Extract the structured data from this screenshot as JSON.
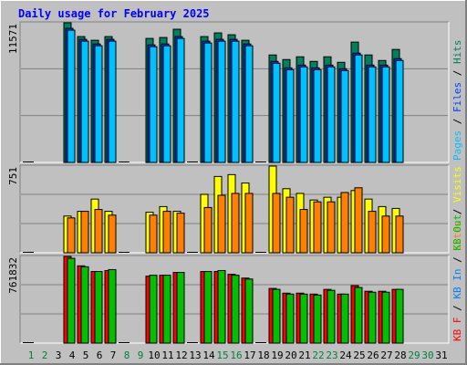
{
  "title": "Daily usage for February 2025",
  "separator": " / ",
  "categories": [
    "1",
    "2",
    "3",
    "4",
    "5",
    "6",
    "7",
    "8",
    "9",
    "10",
    "11",
    "12",
    "13",
    "14",
    "15",
    "16",
    "17",
    "18",
    "19",
    "20",
    "21",
    "22",
    "23",
    "24",
    "25",
    "26",
    "27",
    "28",
    "29",
    "30",
    "31"
  ],
  "category_colors": [
    "#008040",
    "#008040",
    "#000000",
    "#000000",
    "#000000",
    "#000000",
    "#000000",
    "#008040",
    "#008040",
    "#000000",
    "#000000",
    "#000000",
    "#000000",
    "#000000",
    "#008040",
    "#008040",
    "#000000",
    "#000000",
    "#000000",
    "#000000",
    "#000000",
    "#008040",
    "#008040",
    "#000000",
    "#000000",
    "#000000",
    "#000000",
    "#000000",
    "#008040",
    "#008040",
    "#000000"
  ],
  "chart_data": [
    {
      "type": "bar",
      "ylim": [
        0,
        11571
      ],
      "yticks": [
        11571
      ],
      "legend_reverse": true,
      "series": [
        {
          "name": "Hits",
          "color": "#00805c",
          "values": [
            0,
            null,
            null,
            11571,
            10430,
            10125,
            10430,
            0,
            null,
            10277,
            10354,
            11039,
            0,
            10430,
            10734,
            10582,
            10125,
            0,
            8907,
            8526,
            8755,
            8374,
            8755,
            8298,
            9973,
            8907,
            8450,
            9364,
            null,
            null,
            null
          ]
        },
        {
          "name": "Files",
          "color": "#0040ff",
          "values": [
            0,
            null,
            null,
            11113,
            10199,
            9818,
            10199,
            0,
            null,
            9742,
            9818,
            10427,
            0,
            10047,
            10199,
            10199,
            9818,
            0,
            8372,
            7839,
            8067,
            7839,
            8067,
            7763,
            9057,
            8067,
            8067,
            8600,
            null,
            null,
            null
          ]
        },
        {
          "name": "Pages",
          "color": "#00c0ff",
          "values": [
            0,
            null,
            null,
            10963,
            10049,
            9668,
            10049,
            0,
            null,
            9592,
            9668,
            10277,
            0,
            9897,
            10049,
            10049,
            9668,
            0,
            8222,
            7689,
            7917,
            7689,
            7917,
            7613,
            8907,
            7917,
            7917,
            8450,
            null,
            null,
            null
          ]
        }
      ]
    },
    {
      "type": "bar",
      "ylim": [
        0,
        751
      ],
      "yticks": [
        751
      ],
      "legend_reverse": true,
      "series": [
        {
          "name": "Visits",
          "color": "#ffff00",
          "values": [
            0,
            null,
            null,
            318,
            359,
            465,
            359,
            0,
            null,
            351,
            400,
            359,
            0,
            506,
            661,
            677,
            604,
            0,
            751,
            555,
            514,
            457,
            481,
            481,
            539,
            465,
            400,
            384,
            null,
            null,
            null
          ]
        },
        {
          "name": "Sites",
          "color": "#ff8000",
          "values": [
            0,
            null,
            null,
            302,
            359,
            375,
            326,
            0,
            null,
            326,
            359,
            343,
            0,
            392,
            498,
            514,
            514,
            0,
            514,
            481,
            375,
            441,
            441,
            522,
            563,
            359,
            318,
            318,
            null,
            null,
            null
          ]
        }
      ]
    },
    {
      "type": "bar",
      "ylim": [
        0,
        761832
      ],
      "yticks": [
        761832
      ],
      "legend_reverse": false,
      "series": [
        {
          "name": "KB F",
          "color": "#ff0000",
          "values": [
            0,
            null,
            null,
            761832,
            679042,
            629356,
            637637,
            0,
            null,
            587951,
            596232,
            621075,
            0,
            629356,
            629356,
            604513,
            571389,
            0,
            480298,
            438893,
            438893,
            430612,
            472017,
            430612,
            505141,
            455455,
            455455,
            472017,
            null,
            null,
            null
          ]
        },
        {
          "name": "KB In",
          "color": "#0080ff",
          "values": [
            null,
            null,
            null,
            null,
            null,
            null,
            null,
            null,
            null,
            null,
            null,
            null,
            null,
            null,
            null,
            null,
            null,
            null,
            null,
            null,
            null,
            null,
            null,
            null,
            null,
            null,
            null,
            null,
            null,
            null,
            null
          ]
        },
        {
          "name": "KB Out",
          "color": "#00c000",
          "values": [
            0,
            null,
            null,
            745290,
            670761,
            629356,
            645918,
            0,
            null,
            596232,
            596232,
            621075,
            0,
            629356,
            637637,
            596232,
            563108,
            0,
            472017,
            430612,
            430612,
            422331,
            463736,
            430612,
            488579,
            447174,
            447174,
            472017,
            null,
            null,
            null
          ]
        }
      ]
    }
  ]
}
